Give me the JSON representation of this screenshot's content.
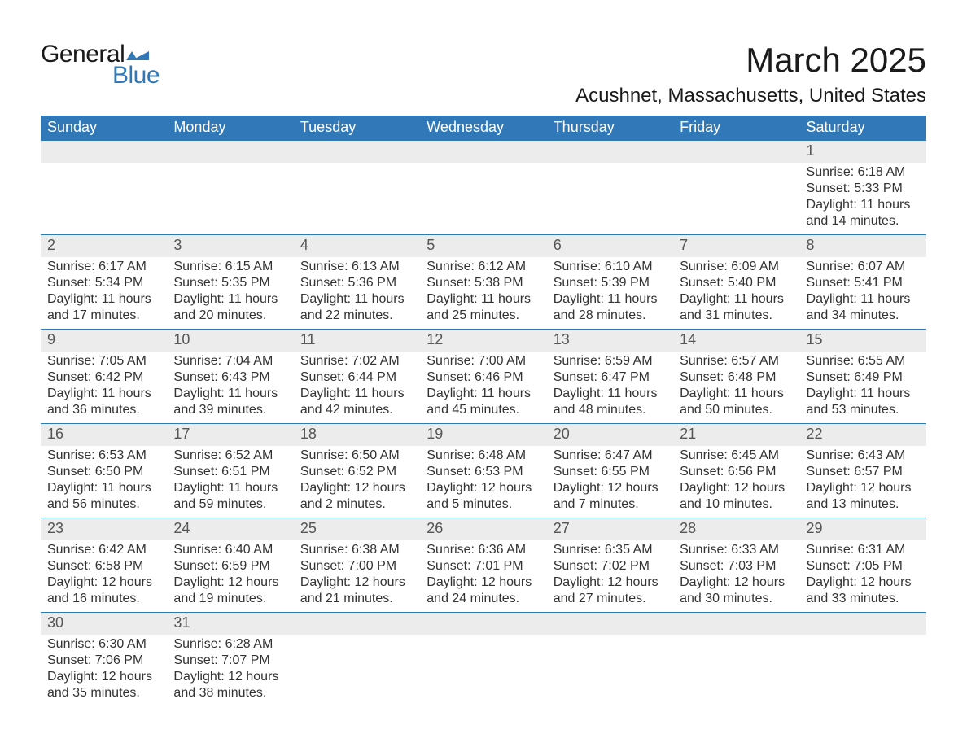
{
  "logo": {
    "top_text": "General",
    "bottom_text": "Blue",
    "flag_color": "#3178b8"
  },
  "header": {
    "month_title": "March 2025",
    "location": "Acushnet, Massachusetts, United States"
  },
  "colors": {
    "header_bg": "#3178b8",
    "header_text": "#ffffff",
    "daynum_bg": "#ececec",
    "text": "#333333",
    "week_divider": "#3178b8"
  },
  "calendar": {
    "type": "table",
    "columns": [
      "Sunday",
      "Monday",
      "Tuesday",
      "Wednesday",
      "Thursday",
      "Friday",
      "Saturday"
    ],
    "weeks": [
      [
        null,
        null,
        null,
        null,
        null,
        null,
        {
          "day": "1",
          "sunrise": "6:18 AM",
          "sunset": "5:33 PM",
          "daylight": "11 hours and 14 minutes."
        }
      ],
      [
        {
          "day": "2",
          "sunrise": "6:17 AM",
          "sunset": "5:34 PM",
          "daylight": "11 hours and 17 minutes."
        },
        {
          "day": "3",
          "sunrise": "6:15 AM",
          "sunset": "5:35 PM",
          "daylight": "11 hours and 20 minutes."
        },
        {
          "day": "4",
          "sunrise": "6:13 AM",
          "sunset": "5:36 PM",
          "daylight": "11 hours and 22 minutes."
        },
        {
          "day": "5",
          "sunrise": "6:12 AM",
          "sunset": "5:38 PM",
          "daylight": "11 hours and 25 minutes."
        },
        {
          "day": "6",
          "sunrise": "6:10 AM",
          "sunset": "5:39 PM",
          "daylight": "11 hours and 28 minutes."
        },
        {
          "day": "7",
          "sunrise": "6:09 AM",
          "sunset": "5:40 PM",
          "daylight": "11 hours and 31 minutes."
        },
        {
          "day": "8",
          "sunrise": "6:07 AM",
          "sunset": "5:41 PM",
          "daylight": "11 hours and 34 minutes."
        }
      ],
      [
        {
          "day": "9",
          "sunrise": "7:05 AM",
          "sunset": "6:42 PM",
          "daylight": "11 hours and 36 minutes."
        },
        {
          "day": "10",
          "sunrise": "7:04 AM",
          "sunset": "6:43 PM",
          "daylight": "11 hours and 39 minutes."
        },
        {
          "day": "11",
          "sunrise": "7:02 AM",
          "sunset": "6:44 PM",
          "daylight": "11 hours and 42 minutes."
        },
        {
          "day": "12",
          "sunrise": "7:00 AM",
          "sunset": "6:46 PM",
          "daylight": "11 hours and 45 minutes."
        },
        {
          "day": "13",
          "sunrise": "6:59 AM",
          "sunset": "6:47 PM",
          "daylight": "11 hours and 48 minutes."
        },
        {
          "day": "14",
          "sunrise": "6:57 AM",
          "sunset": "6:48 PM",
          "daylight": "11 hours and 50 minutes."
        },
        {
          "day": "15",
          "sunrise": "6:55 AM",
          "sunset": "6:49 PM",
          "daylight": "11 hours and 53 minutes."
        }
      ],
      [
        {
          "day": "16",
          "sunrise": "6:53 AM",
          "sunset": "6:50 PM",
          "daylight": "11 hours and 56 minutes."
        },
        {
          "day": "17",
          "sunrise": "6:52 AM",
          "sunset": "6:51 PM",
          "daylight": "11 hours and 59 minutes."
        },
        {
          "day": "18",
          "sunrise": "6:50 AM",
          "sunset": "6:52 PM",
          "daylight": "12 hours and 2 minutes."
        },
        {
          "day": "19",
          "sunrise": "6:48 AM",
          "sunset": "6:53 PM",
          "daylight": "12 hours and 5 minutes."
        },
        {
          "day": "20",
          "sunrise": "6:47 AM",
          "sunset": "6:55 PM",
          "daylight": "12 hours and 7 minutes."
        },
        {
          "day": "21",
          "sunrise": "6:45 AM",
          "sunset": "6:56 PM",
          "daylight": "12 hours and 10 minutes."
        },
        {
          "day": "22",
          "sunrise": "6:43 AM",
          "sunset": "6:57 PM",
          "daylight": "12 hours and 13 minutes."
        }
      ],
      [
        {
          "day": "23",
          "sunrise": "6:42 AM",
          "sunset": "6:58 PM",
          "daylight": "12 hours and 16 minutes."
        },
        {
          "day": "24",
          "sunrise": "6:40 AM",
          "sunset": "6:59 PM",
          "daylight": "12 hours and 19 minutes."
        },
        {
          "day": "25",
          "sunrise": "6:38 AM",
          "sunset": "7:00 PM",
          "daylight": "12 hours and 21 minutes."
        },
        {
          "day": "26",
          "sunrise": "6:36 AM",
          "sunset": "7:01 PM",
          "daylight": "12 hours and 24 minutes."
        },
        {
          "day": "27",
          "sunrise": "6:35 AM",
          "sunset": "7:02 PM",
          "daylight": "12 hours and 27 minutes."
        },
        {
          "day": "28",
          "sunrise": "6:33 AM",
          "sunset": "7:03 PM",
          "daylight": "12 hours and 30 minutes."
        },
        {
          "day": "29",
          "sunrise": "6:31 AM",
          "sunset": "7:05 PM",
          "daylight": "12 hours and 33 minutes."
        }
      ],
      [
        {
          "day": "30",
          "sunrise": "6:30 AM",
          "sunset": "7:06 PM",
          "daylight": "12 hours and 35 minutes."
        },
        {
          "day": "31",
          "sunrise": "6:28 AM",
          "sunset": "7:07 PM",
          "daylight": "12 hours and 38 minutes."
        },
        null,
        null,
        null,
        null,
        null
      ]
    ],
    "labels": {
      "sunrise_prefix": "Sunrise: ",
      "sunset_prefix": "Sunset: ",
      "daylight_prefix": "Daylight: "
    }
  }
}
